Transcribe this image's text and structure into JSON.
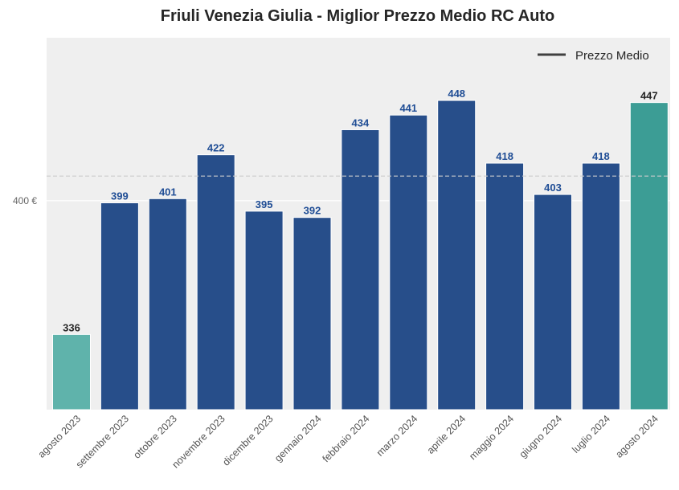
{
  "chart_data": {
    "type": "bar",
    "title": "Friuli Venezia Giulia - Miglior Prezzo Medio RC Auto",
    "xlabel": "",
    "ylabel": "",
    "categories": [
      "agosto 2023",
      "settembre 2023",
      "ottobre 2023",
      "novembre 2023",
      "dicembre 2023",
      "gennaio 2024",
      "febbraio 2024",
      "marzo 2024",
      "aprile 2024",
      "maggio 2024",
      "giugno 2024",
      "luglio 2024",
      "agosto 2024"
    ],
    "values": [
      336,
      399,
      401,
      422,
      395,
      392,
      434,
      441,
      448,
      418,
      403,
      418,
      447
    ],
    "value_labels": [
      "336",
      "399",
      "401",
      "422",
      "395",
      "392",
      "434",
      "441",
      "448",
      "418",
      "403",
      "418",
      "447"
    ],
    "ylim": [
      300,
      478
    ],
    "yticks": [
      400
    ],
    "ytick_labels": [
      "400 €"
    ],
    "mean_line": {
      "label": "Prezzo Medio",
      "value": 411.8
    },
    "legend": {
      "placement": "top-right",
      "entries": [
        "Prezzo Medio"
      ]
    },
    "grid": true,
    "colors": {
      "first_bar": "#5fb3ab",
      "middle_bars": "#274e8a",
      "last_bar": "#3c9d95",
      "middle_label": "#1f4d95",
      "edge_label": "#262626",
      "mean_line": "#cccccc",
      "plot_bg": "#efefef",
      "legend_line": "#404040"
    }
  }
}
